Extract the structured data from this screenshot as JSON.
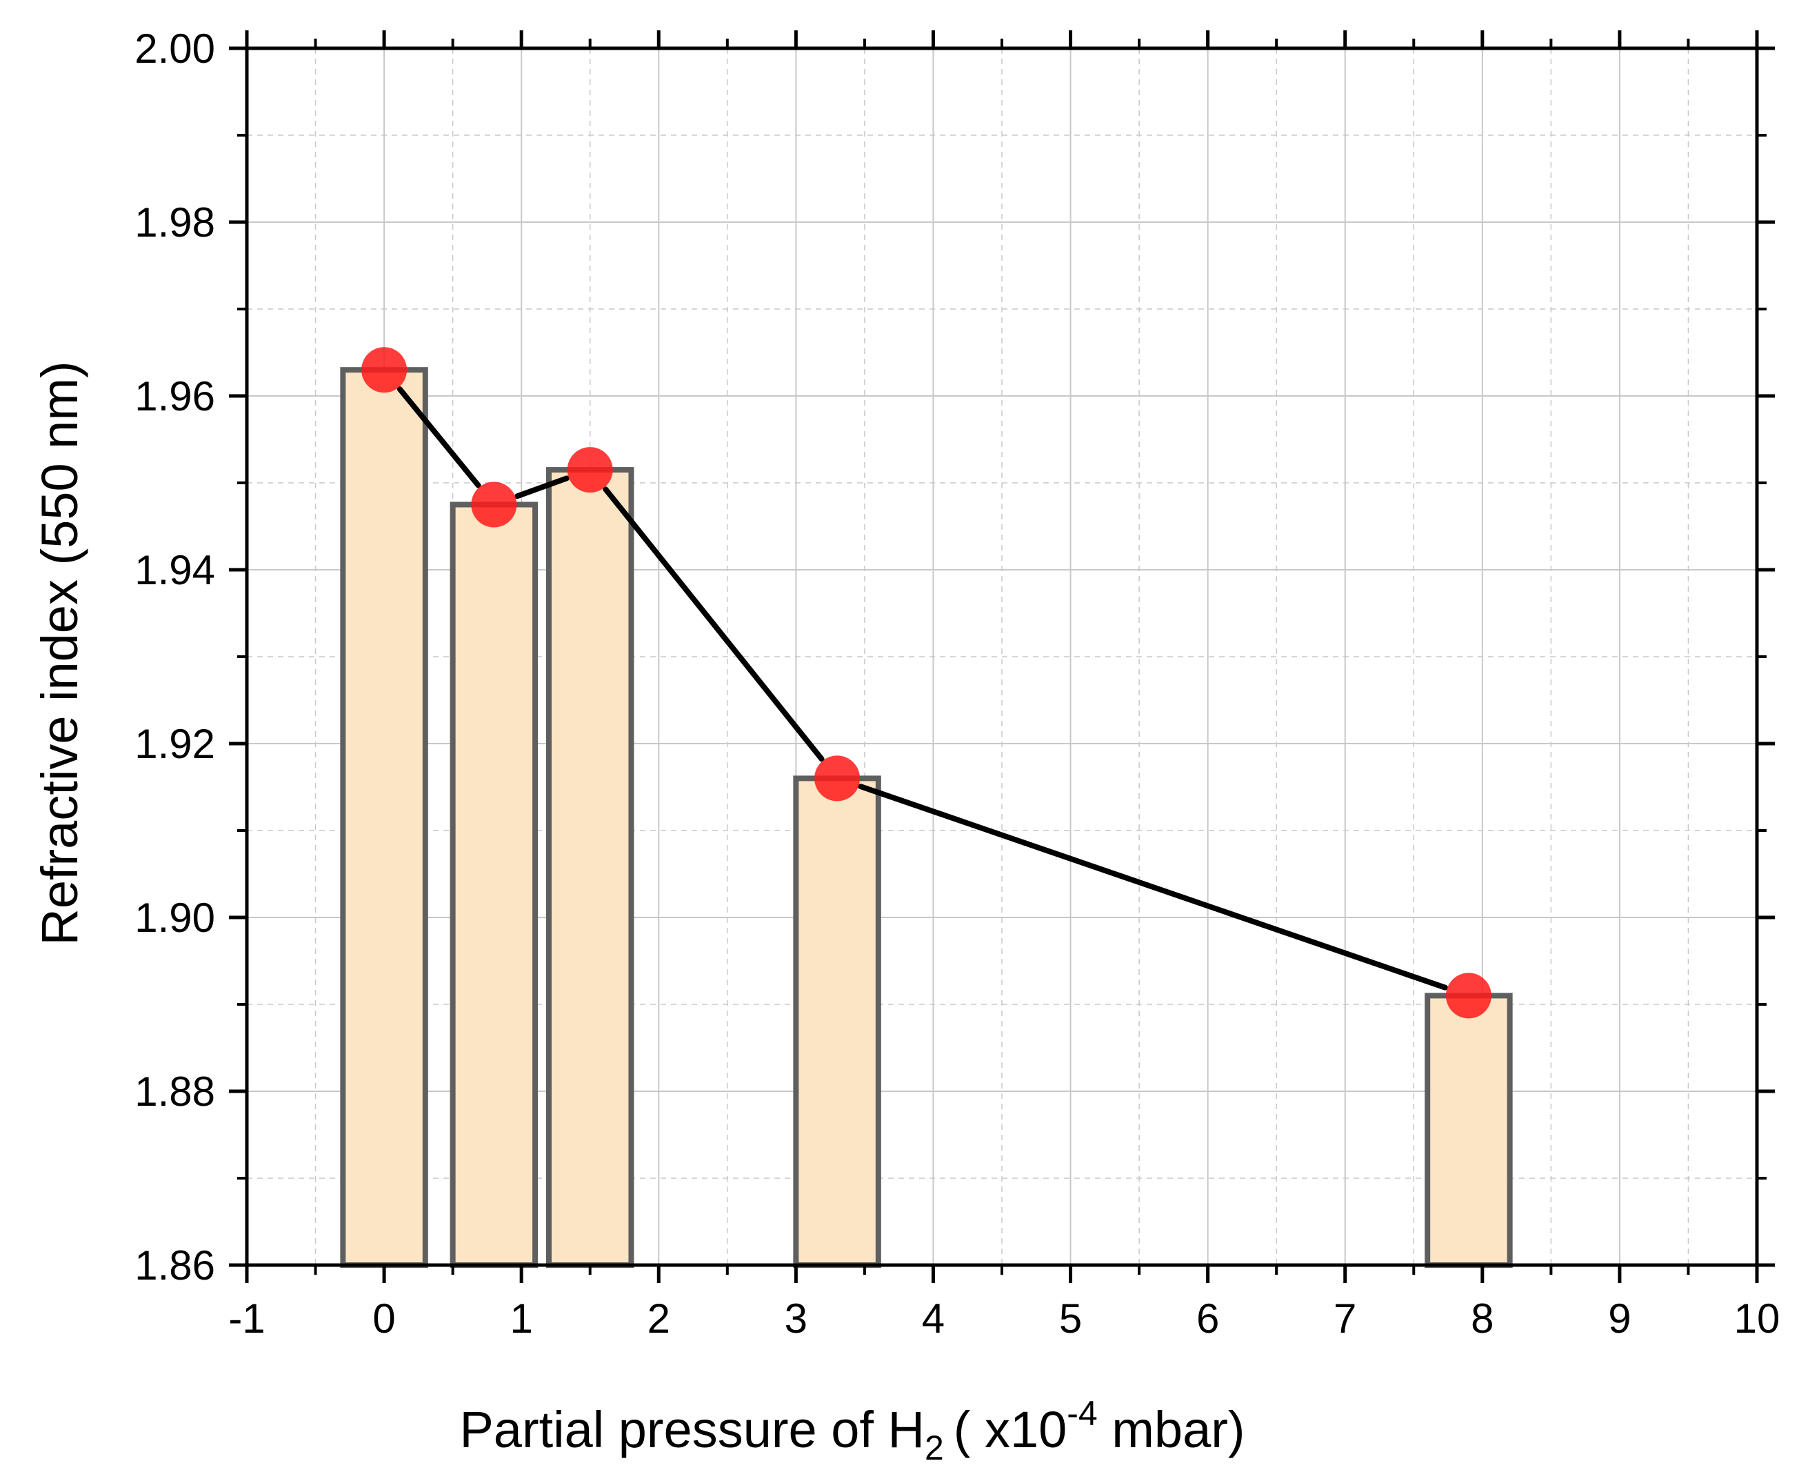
{
  "chart_data": {
    "type": "bar",
    "title": "",
    "xlabel": {
      "main": "Partial pressure of H",
      "subscript": "2",
      "middle": "( x10",
      "superscript": "-4",
      "unit": " mbar)"
    },
    "ylabel": "Refractive index (550 nm)",
    "xlim": [
      -1,
      10
    ],
    "ylim": [
      1.86,
      2.0
    ],
    "xticks": [
      -1,
      0,
      1,
      2,
      3,
      4,
      5,
      6,
      7,
      8,
      9,
      10
    ],
    "yticks": [
      "1.86",
      "1.88",
      "1.90",
      "1.92",
      "1.94",
      "1.96",
      "1.98",
      "2.00"
    ],
    "grid": true,
    "series": [
      {
        "name": "Refractive index",
        "type": "bar+line",
        "x": [
          0,
          0.8,
          1.5,
          3.3,
          7.9
        ],
        "values": [
          1.963,
          1.9475,
          1.9515,
          1.916,
          1.891
        ],
        "bar_width": 0.6
      }
    ],
    "colors": {
      "bar_fill": "#fbe5c4",
      "bar_edge": "#5f5f5f",
      "line": "#000000",
      "marker": "#ff1a1a",
      "grid": "#c8c8c8",
      "axis": "#000000"
    }
  }
}
